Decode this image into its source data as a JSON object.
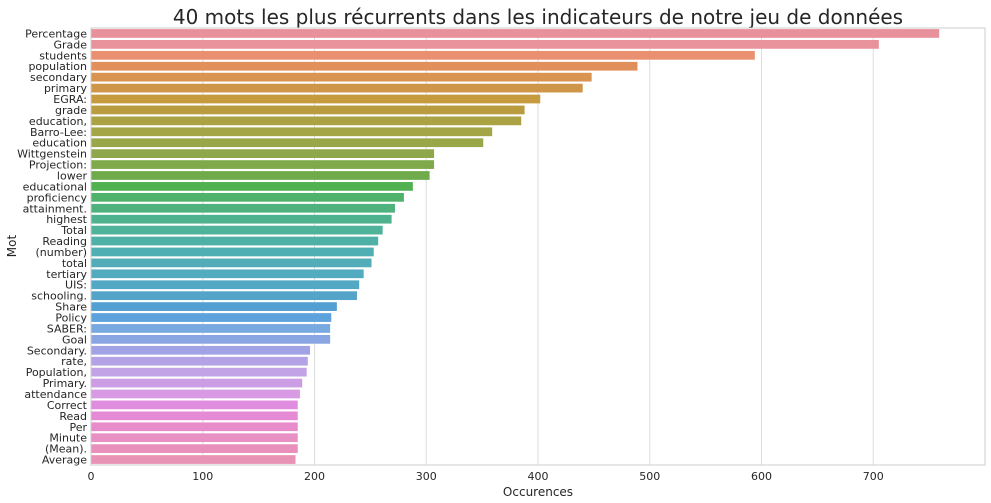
{
  "chart_data": {
    "type": "bar",
    "orientation": "horizontal",
    "title": "40 mots les plus récurrents dans les indicateurs de notre jeu de données",
    "xlabel": "Occurences",
    "ylabel": "Mot",
    "xlim": [
      0,
      800
    ],
    "xticks": [
      0,
      100,
      200,
      300,
      400,
      500,
      600,
      700
    ],
    "grid": "vertical",
    "categories": [
      "Percentage",
      "Grade",
      "students",
      "population",
      "secondary",
      "primary",
      "EGRA:",
      "grade",
      "education,",
      "Barro-Lee:",
      "education",
      "Wittgenstein",
      "Projection:",
      "lower",
      "educational",
      "proficiency",
      "attainment.",
      "highest",
      "Total",
      "Reading",
      "(number)",
      "total",
      "tertiary",
      "UIS:",
      "schooling.",
      "Share",
      "Policy",
      "SABER:",
      "Goal",
      "Secondary.",
      "rate,",
      "Population,",
      "Primary.",
      "attendance",
      "Correct",
      "Read",
      "Per",
      "Minute",
      "(Mean).",
      "Average"
    ],
    "values": [
      759,
      705,
      594,
      489,
      448,
      440,
      402,
      388,
      385,
      359,
      351,
      307,
      307,
      303,
      288,
      280,
      272,
      269,
      261,
      257,
      253,
      251,
      244,
      240,
      238,
      220,
      215,
      214,
      214,
      196,
      194,
      193,
      189,
      187,
      185,
      185,
      185,
      185,
      185,
      183
    ],
    "colors": [
      "#e8919a",
      "#e8939b",
      "#ea8f6f",
      "#e2905b",
      "#d89450",
      "#cf964a",
      "#c69b3e",
      "#b89c3f",
      "#aba243",
      "#a3a546",
      "#9aa749",
      "#8fa74b",
      "#80a94b",
      "#6fab4b",
      "#51b04f",
      "#4fb26a",
      "#4fb27e",
      "#4fb28e",
      "#4fb29b",
      "#4fb0a7",
      "#50afb2",
      "#52adb8",
      "#52abbe",
      "#53a8c3",
      "#54a3c9",
      "#549fd2",
      "#5ea2dd",
      "#78a9e0",
      "#8aa6e2",
      "#a1a3e4",
      "#b3a3e6",
      "#c1a3e6",
      "#cc9ce5",
      "#d89be3",
      "#e08de0",
      "#e58bd5",
      "#e88bcb",
      "#e88fc3",
      "#e88fbb",
      "#e892b5"
    ]
  }
}
